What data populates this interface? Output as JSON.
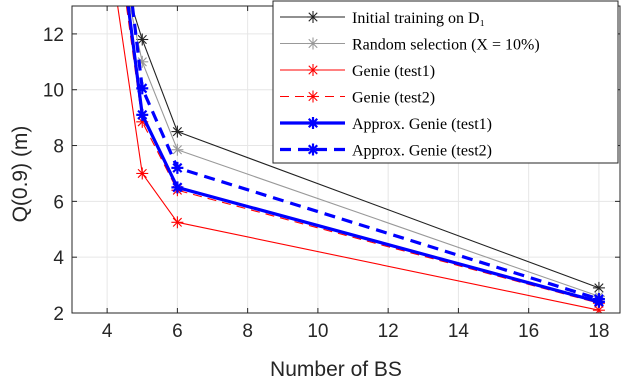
{
  "chart_data": {
    "type": "line",
    "xlabel": "Number of BS",
    "ylabel": "Q(0.9) (m)",
    "xlim": [
      3,
      18.6
    ],
    "ylim": [
      2,
      13
    ],
    "xticks": [
      4,
      6,
      8,
      10,
      12,
      14,
      16,
      18
    ],
    "yticks": [
      2,
      4,
      6,
      8,
      10,
      12
    ],
    "grid": true,
    "legend_position": "top-right",
    "series": [
      {
        "name": "Initial training on D₁",
        "color": "#222222",
        "style": "solid",
        "marker": "asterisk",
        "weight": "thin",
        "points": [
          [
            4.7,
            13.0
          ],
          [
            5.0,
            11.8
          ],
          [
            6.0,
            8.5
          ],
          [
            18.0,
            2.9
          ]
        ],
        "markers": [
          [
            5.0,
            11.8
          ],
          [
            6.0,
            8.5
          ],
          [
            18.0,
            2.9
          ]
        ]
      },
      {
        "name": "Random selection (X = 10%)",
        "color": "#999999",
        "style": "solid",
        "marker": "asterisk",
        "weight": "thin",
        "points": [
          [
            4.65,
            13.0
          ],
          [
            5.0,
            11.0
          ],
          [
            6.0,
            7.85
          ],
          [
            18.0,
            2.6
          ]
        ],
        "markers": [
          [
            5.0,
            11.0
          ],
          [
            6.0,
            7.85
          ],
          [
            18.0,
            2.6
          ]
        ]
      },
      {
        "name": "Genie (test1)",
        "color": "#ff0000",
        "style": "solid",
        "marker": "asterisk",
        "weight": "thin",
        "points": [
          [
            4.3,
            13.0
          ],
          [
            5.0,
            7.0
          ],
          [
            6.0,
            5.25
          ],
          [
            18.0,
            2.1
          ]
        ],
        "markers": [
          [
            5.0,
            7.0
          ],
          [
            6.0,
            5.25
          ],
          [
            18.0,
            2.1
          ]
        ]
      },
      {
        "name": "Genie (test2)",
        "color": "#ff0000",
        "style": "dashed",
        "marker": "asterisk",
        "weight": "thin",
        "points": [
          [
            4.55,
            13.0
          ],
          [
            5.0,
            8.85
          ],
          [
            6.0,
            6.4
          ],
          [
            18.0,
            2.35
          ]
        ],
        "markers": [
          [
            5.0,
            8.85
          ],
          [
            6.0,
            6.4
          ],
          [
            18.0,
            2.35
          ]
        ]
      },
      {
        "name": "Approx. Genie (test1)",
        "color": "#0000ff",
        "style": "solid",
        "marker": "asterisk",
        "weight": "bold",
        "points": [
          [
            4.6,
            13.0
          ],
          [
            5.0,
            9.1
          ],
          [
            6.0,
            6.5
          ],
          [
            18.0,
            2.4
          ]
        ],
        "markers": [
          [
            5.0,
            9.1
          ],
          [
            6.0,
            6.5
          ],
          [
            18.0,
            2.4
          ]
        ]
      },
      {
        "name": "Approx. Genie (test2)",
        "color": "#0000ff",
        "style": "dashed",
        "marker": "asterisk",
        "weight": "bold",
        "points": [
          [
            4.72,
            13.0
          ],
          [
            5.0,
            10.05
          ],
          [
            6.0,
            7.2
          ],
          [
            18.0,
            2.5
          ]
        ],
        "markers": [
          [
            5.0,
            10.05
          ],
          [
            6.0,
            7.2
          ],
          [
            18.0,
            2.5
          ]
        ]
      }
    ]
  },
  "colors": {
    "axis": "#262626",
    "grid": "#e6e6e6",
    "background": "#ffffff"
  }
}
